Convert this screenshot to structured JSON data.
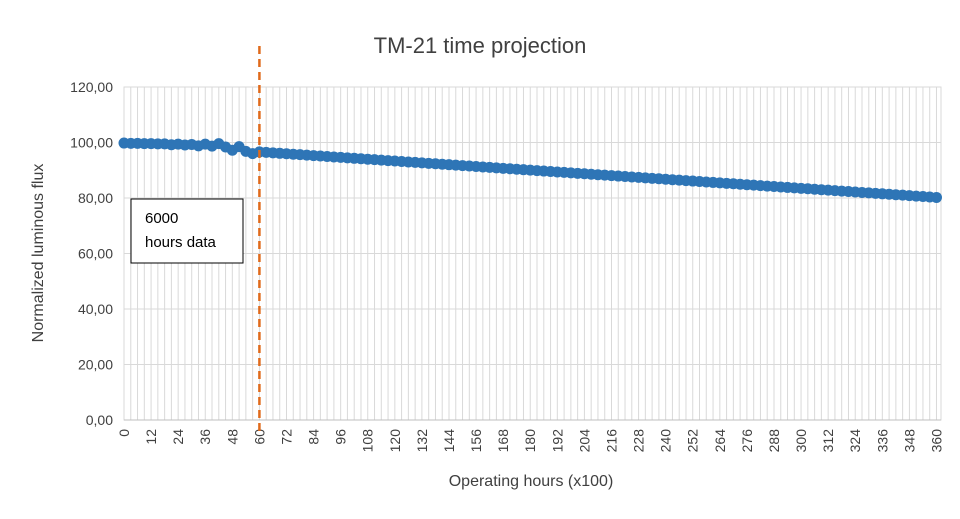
{
  "chart_data": {
    "type": "scatter",
    "title": "TM-21 time projection",
    "xlabel": "Operating hours (x100)",
    "ylabel": "Normalized luminous flux",
    "xlim": [
      0,
      362
    ],
    "ylim": [
      0,
      120
    ],
    "x_tick_labels": [
      "0",
      "12",
      "24",
      "36",
      "48",
      "60",
      "72",
      "84",
      "96",
      "108",
      "120",
      "132",
      "144",
      "156",
      "168",
      "180",
      "192",
      "204",
      "216",
      "228",
      "240",
      "252",
      "264",
      "276",
      "288",
      "300",
      "312",
      "324",
      "336",
      "348",
      "360"
    ],
    "y_tick_labels": [
      "0,00",
      "20,00",
      "40,00",
      "60,00",
      "80,00",
      "100,00",
      "120,00"
    ],
    "grid": true,
    "series": [
      {
        "color": "#2E75B6",
        "measured": {
          "x": [
            0,
            3,
            6,
            9,
            12,
            15,
            18,
            21,
            24,
            27,
            30,
            33,
            36,
            39,
            42,
            45,
            48,
            51,
            54,
            57,
            60
          ],
          "y": [
            99.8,
            99.7,
            99.7,
            99.6,
            99.6,
            99.5,
            99.5,
            99.2,
            99.4,
            99.1,
            99.3,
            98.8,
            99.4,
            98.7,
            99.6,
            98.4,
            97.2,
            98.5,
            96.8,
            96.0,
            96.6
          ]
        },
        "projection": {
          "x_start": 60,
          "x_end": 360,
          "step": 3,
          "y_start": 96.6,
          "y_end": 80.2
        }
      }
    ],
    "annotations": [
      {
        "text_lines": [
          "6000",
          "hours data"
        ]
      },
      {
        "type": "vertical-dashed-line",
        "x": 60,
        "color": "#E06A1B"
      }
    ]
  }
}
